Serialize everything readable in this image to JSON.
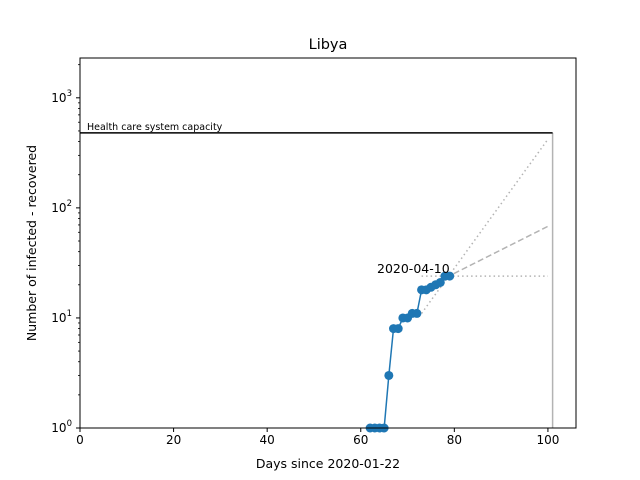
{
  "chart_data": {
    "type": "line",
    "title": "Libya",
    "xlabel": "Days since 2020-01-22",
    "ylabel": "Number of infected - recovered",
    "xlim": [
      0,
      106
    ],
    "ylim": [
      1,
      2300
    ],
    "yscale": "log",
    "grid": false,
    "x_ticks": [
      0,
      20,
      40,
      60,
      80,
      100
    ],
    "x_tick_labels": [
      "0",
      "20",
      "40",
      "60",
      "80",
      "100"
    ],
    "y_ticks": [
      1,
      10,
      100,
      1000
    ],
    "y_tick_labels": [
      {
        "base": "10",
        "exp": "0"
      },
      {
        "base": "10",
        "exp": "1"
      },
      {
        "base": "10",
        "exp": "2"
      },
      {
        "base": "10",
        "exp": "3"
      }
    ],
    "series": [
      {
        "x": [
          62,
          63,
          64,
          65,
          66,
          67,
          68,
          69,
          70,
          71,
          72,
          73,
          74,
          75,
          76,
          77,
          78,
          79
        ],
        "y": [
          1,
          1,
          1,
          1,
          3,
          8,
          8,
          10,
          10,
          11,
          11,
          18,
          18,
          19,
          20,
          21,
          24,
          24
        ],
        "color": "#1f77b4"
      }
    ],
    "projections": [
      {
        "style": "dotted",
        "x": [
          73,
          100
        ],
        "y": [
          11,
          420
        ],
        "color": "#b3b3b3"
      },
      {
        "style": "dashed",
        "x": [
          73,
          100
        ],
        "y": [
          18,
          68
        ],
        "color": "#b3b3b3"
      },
      {
        "style": "dotted",
        "x": [
          73,
          100
        ],
        "y": [
          24,
          24
        ],
        "color": "#b3b3b3"
      }
    ],
    "capacity_line": {
      "y": 480,
      "x_start": 0,
      "x_end": 101,
      "label": "Health care system capacity",
      "color": "#000000"
    },
    "vertical_line": {
      "x": 101,
      "color": "#b3b3b3"
    },
    "annotations": [
      {
        "text": "2020-04-10",
        "x": 79,
        "y": 24
      }
    ]
  }
}
